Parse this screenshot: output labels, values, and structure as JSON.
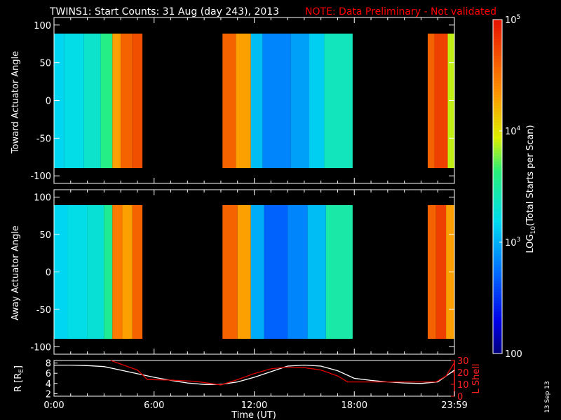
{
  "title": {
    "main": "TWINS1: Start Counts: 31 Aug (day 243), 2013",
    "note": "NOTE: Data Preliminary - Not validated",
    "note_color": "#ff0000"
  },
  "date_stamp": "13 Sep 13",
  "colorbar": {
    "label": "LOG10(Total Starts per Scan)",
    "label_prefix": "LOG",
    "label_sub": "10",
    "label_suffix": "(Total Starts per Scan)",
    "ticks": [
      {
        "base": "10",
        "exp": "5",
        "value": 100000
      },
      {
        "base": "10",
        "exp": "4",
        "value": 10000
      },
      {
        "base": "10",
        "exp": "3",
        "value": 1000
      },
      {
        "base": "100",
        "exp": "",
        "value": 100
      }
    ]
  },
  "chart_data": [
    {
      "type": "heatmap",
      "ylabel": "Toward Actuator Angle",
      "ylim": [
        -110,
        110
      ],
      "yticks": [
        "100",
        "50",
        "0",
        "-50",
        "-100"
      ],
      "xlim_hours": [
        0,
        24
      ],
      "color_scale": "log",
      "zlim": [
        100,
        100000
      ],
      "data_intervals_hours": [
        [
          0,
          5.3
        ],
        [
          10.1,
          17.9
        ],
        [
          22.4,
          24
        ]
      ],
      "columns": [
        {
          "t": [
            0.0,
            0.6
          ],
          "v": 1500
        },
        {
          "t": [
            0.6,
            1.8
          ],
          "v": 1700
        },
        {
          "t": [
            1.8,
            2.8
          ],
          "v": 2200
        },
        {
          "t": [
            2.8,
            3.5
          ],
          "v": 4000
        },
        {
          "t": [
            3.5,
            4.0
          ],
          "v": 20000
        },
        {
          "t": [
            4.0,
            4.7
          ],
          "v": 40000
        },
        {
          "t": [
            4.7,
            5.3
          ],
          "v": 50000
        },
        {
          "t": [
            10.1,
            10.9
          ],
          "v": 40000
        },
        {
          "t": [
            10.9,
            11.8
          ],
          "v": 20000
        },
        {
          "t": [
            11.8,
            12.5
          ],
          "v": 1200
        },
        {
          "t": [
            12.5,
            14.2
          ],
          "v": 700
        },
        {
          "t": [
            14.2,
            15.3
          ],
          "v": 900
        },
        {
          "t": [
            15.3,
            16.2
          ],
          "v": 1400
        },
        {
          "t": [
            16.2,
            17.9
          ],
          "v": 2500
        },
        {
          "t": [
            22.4,
            22.8
          ],
          "v": 40000
        },
        {
          "t": [
            22.8,
            23.6
          ],
          "v": 60000
        },
        {
          "t": [
            23.6,
            24.0
          ],
          "v": 8000
        }
      ]
    },
    {
      "type": "heatmap",
      "ylabel": "Away Actuator Angle",
      "ylim": [
        -110,
        110
      ],
      "yticks": [
        "100",
        "50",
        "0",
        "-50",
        "-100"
      ],
      "xlim_hours": [
        0,
        24
      ],
      "color_scale": "log",
      "zlim": [
        100,
        100000
      ],
      "data_intervals_hours": [
        [
          0,
          5.3
        ],
        [
          10.1,
          17.9
        ],
        [
          22.4,
          24
        ]
      ],
      "columns": [
        {
          "t": [
            0.0,
            0.8
          ],
          "v": 1500
        },
        {
          "t": [
            0.8,
            2.0
          ],
          "v": 1700
        },
        {
          "t": [
            2.0,
            3.0
          ],
          "v": 2000
        },
        {
          "t": [
            3.0,
            3.5
          ],
          "v": 3500
        },
        {
          "t": [
            3.5,
            4.1
          ],
          "v": 30000
        },
        {
          "t": [
            4.1,
            4.7
          ],
          "v": 20000
        },
        {
          "t": [
            4.7,
            5.3
          ],
          "v": 40000
        },
        {
          "t": [
            10.1,
            11.0
          ],
          "v": 40000
        },
        {
          "t": [
            11.0,
            11.8
          ],
          "v": 20000
        },
        {
          "t": [
            11.8,
            12.6
          ],
          "v": 1000
        },
        {
          "t": [
            12.6,
            14.0
          ],
          "v": 500
        },
        {
          "t": [
            14.0,
            15.2
          ],
          "v": 700
        },
        {
          "t": [
            15.2,
            16.3
          ],
          "v": 1200
        },
        {
          "t": [
            16.3,
            17.9
          ],
          "v": 3000
        },
        {
          "t": [
            22.4,
            22.9
          ],
          "v": 40000
        },
        {
          "t": [
            22.9,
            23.5
          ],
          "v": 60000
        },
        {
          "t": [
            23.5,
            24.0
          ],
          "v": 20000
        }
      ]
    },
    {
      "type": "line",
      "ylabel_left": "R [RE]",
      "ylabel_left_prefix": "R [R",
      "ylabel_left_sub": "E",
      "ylabel_left_suffix": "]",
      "ylabel_right": "L Shell",
      "ylabel_right_color": "#ff2020",
      "ylim_left": [
        1.5,
        8.5
      ],
      "yticks_left": [
        "8",
        "6",
        "4",
        "2"
      ],
      "ylim_right": [
        0,
        30
      ],
      "yticks_right": [
        "30",
        "20",
        "10",
        "0"
      ],
      "xlabel": "Time (UT)",
      "xticks": [
        "0:00",
        "6:00",
        "12:00",
        "18:00",
        "23:59"
      ],
      "series": [
        {
          "color": "#ffffff",
          "axis": "left",
          "x": [
            0,
            1,
            2,
            3,
            4,
            5,
            6,
            7,
            8,
            9,
            10,
            11,
            12,
            13,
            14,
            15,
            16,
            17,
            18,
            19,
            20,
            21,
            22,
            23,
            24
          ],
          "y": [
            7.6,
            7.6,
            7.5,
            7.3,
            6.6,
            5.9,
            5.2,
            4.6,
            4.1,
            3.8,
            3.8,
            4.3,
            5.2,
            6.3,
            7.4,
            7.6,
            7.4,
            6.5,
            5.0,
            4.6,
            4.3,
            4.1,
            4.0,
            4.3,
            6.6
          ]
        },
        {
          "color": "#e00000",
          "axis": "right",
          "x": [
            3.4,
            5.0,
            5.6,
            7.0,
            8.5,
            10.0,
            11.0,
            12.0,
            13.0,
            14.0,
            15.0,
            16.0,
            17.0,
            17.6,
            18.5,
            20.0,
            21.0,
            22.0,
            22.9,
            23.5,
            23.99
          ],
          "y": [
            30,
            22,
            14,
            13.5,
            12.5,
            9.5,
            14,
            19,
            23,
            24.5,
            24,
            22,
            17,
            12,
            12,
            12,
            12,
            12,
            12,
            17,
            28
          ]
        }
      ]
    }
  ]
}
